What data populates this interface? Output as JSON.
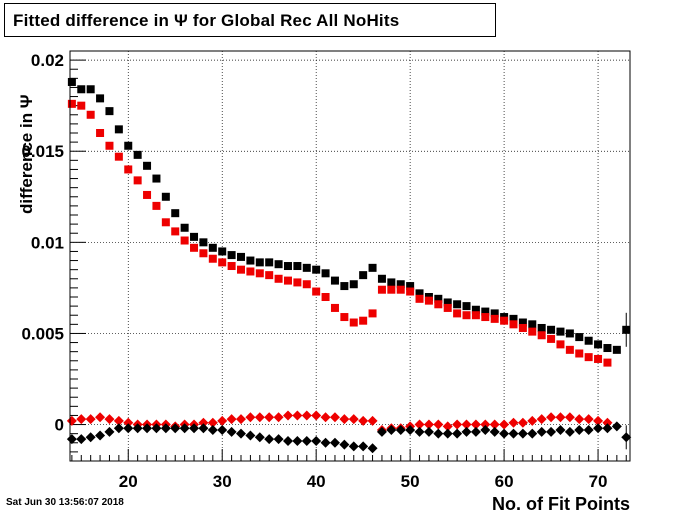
{
  "title": "Fitted difference in  Ψ  for Global Rec All NoHits",
  "timestamp": "Sat Jun 30 13:56:07 2018",
  "chart_data": {
    "type": "scatter",
    "title": "Fitted difference in  Ψ  for Global Rec All NoHits",
    "xlabel": "No. of Fit Points",
    "ylabel": "difference in Ψ",
    "xlim": [
      13.8,
      73.4
    ],
    "ylim": [
      -0.002,
      0.0205
    ],
    "grid": true,
    "x_ticks": [
      20,
      30,
      40,
      50,
      60,
      70
    ],
    "x_tick_labels": [
      "20",
      "30",
      "40",
      "50",
      "60",
      "70"
    ],
    "y_ticks": [
      0,
      0.005,
      0.01,
      0.015,
      0.02
    ],
    "y_tick_labels": [
      "0",
      "0.005",
      "0.01",
      "0.015",
      "0.02"
    ],
    "series": [
      {
        "marker": "square",
        "color": "#000000",
        "x": [
          14,
          15,
          16,
          17,
          18,
          19,
          20,
          21,
          22,
          23,
          24,
          25,
          26,
          27,
          28,
          29,
          30,
          31,
          32,
          33,
          34,
          35,
          36,
          37,
          38,
          39,
          40,
          41,
          42,
          43,
          44,
          45,
          46,
          47,
          48,
          49,
          50,
          51,
          52,
          53,
          54,
          55,
          56,
          57,
          58,
          59,
          60,
          61,
          62,
          63,
          64,
          65,
          66,
          67,
          68,
          69,
          70,
          71,
          72,
          73
        ],
        "y": [
          0.0188,
          0.0184,
          0.0184,
          0.0179,
          0.0172,
          0.0162,
          0.0153,
          0.0148,
          0.0142,
          0.0135,
          0.0125,
          0.0116,
          0.0108,
          0.0103,
          0.01,
          0.0097,
          0.0095,
          0.0093,
          0.0092,
          0.009,
          0.0089,
          0.0089,
          0.0088,
          0.0087,
          0.0087,
          0.0086,
          0.0085,
          0.0083,
          0.0079,
          0.0076,
          0.0077,
          0.0082,
          0.0086,
          0.008,
          0.0078,
          0.0077,
          0.0076,
          0.0072,
          0.007,
          0.0069,
          0.0067,
          0.0066,
          0.0065,
          0.0063,
          0.0062,
          0.0061,
          0.0059,
          0.0058,
          0.0056,
          0.0055,
          0.0053,
          0.0052,
          0.0051,
          0.005,
          0.0048,
          0.0046,
          0.0044,
          0.0042,
          0.0041,
          0.0052
        ]
      },
      {
        "marker": "square",
        "color": "#ee0000",
        "x": [
          14,
          15,
          16,
          17,
          18,
          19,
          20,
          21,
          22,
          23,
          24,
          25,
          26,
          27,
          28,
          29,
          30,
          31,
          32,
          33,
          34,
          35,
          36,
          37,
          38,
          39,
          40,
          41,
          42,
          43,
          44,
          45,
          46,
          47,
          48,
          49,
          50,
          51,
          52,
          53,
          54,
          55,
          56,
          57,
          58,
          59,
          60,
          61,
          62,
          63,
          64,
          65,
          66,
          67,
          68,
          69,
          70,
          71
        ],
        "y": [
          0.0176,
          0.0175,
          0.017,
          0.016,
          0.0153,
          0.0147,
          0.014,
          0.0134,
          0.0126,
          0.012,
          0.0111,
          0.0106,
          0.0101,
          0.0097,
          0.0094,
          0.0091,
          0.0089,
          0.0087,
          0.0085,
          0.0084,
          0.0083,
          0.0082,
          0.008,
          0.0079,
          0.0078,
          0.0077,
          0.0073,
          0.007,
          0.0064,
          0.0059,
          0.0056,
          0.0057,
          0.0061,
          0.0074,
          0.0074,
          0.0074,
          0.0073,
          0.0069,
          0.0068,
          0.0066,
          0.0064,
          0.0061,
          0.006,
          0.006,
          0.0059,
          0.0058,
          0.0057,
          0.0055,
          0.0053,
          0.0051,
          0.0049,
          0.0047,
          0.0044,
          0.0041,
          0.0039,
          0.0037,
          0.0036,
          0.0034
        ]
      },
      {
        "marker": "diamond",
        "color": "#ee0000",
        "x": [
          14,
          15,
          16,
          17,
          18,
          19,
          20,
          21,
          22,
          23,
          24,
          25,
          26,
          27,
          28,
          29,
          30,
          31,
          32,
          33,
          34,
          35,
          36,
          37,
          38,
          39,
          40,
          41,
          42,
          43,
          44,
          45,
          46,
          47,
          48,
          49,
          50,
          51,
          52,
          53,
          54,
          55,
          56,
          57,
          58,
          59,
          60,
          61,
          62,
          63,
          64,
          65,
          66,
          67,
          68,
          69,
          70,
          71
        ],
        "y": [
          0.0002,
          0.0003,
          0.0003,
          0.0004,
          0.0003,
          0.0002,
          0.0001,
          0.0,
          0.0,
          0.0,
          0.0,
          -0.0001,
          0.0,
          0.0,
          0.0001,
          0.0001,
          0.0002,
          0.0003,
          0.0003,
          0.0004,
          0.0004,
          0.0004,
          0.0004,
          0.0005,
          0.0005,
          0.0005,
          0.0005,
          0.0004,
          0.0004,
          0.0003,
          0.0003,
          0.0002,
          0.0002,
          -0.0003,
          -0.0002,
          -0.0002,
          -0.0001,
          0.0,
          0.0,
          0.0,
          -0.0001,
          0.0,
          0.0,
          0.0,
          0.0,
          0.0,
          0.0,
          0.0001,
          0.0001,
          0.0002,
          0.0003,
          0.0004,
          0.0004,
          0.0004,
          0.0003,
          0.0003,
          0.0002,
          0.0001
        ]
      },
      {
        "marker": "diamond",
        "color": "#000000",
        "x": [
          14,
          15,
          16,
          17,
          18,
          19,
          20,
          21,
          22,
          23,
          24,
          25,
          26,
          27,
          28,
          29,
          30,
          31,
          32,
          33,
          34,
          35,
          36,
          37,
          38,
          39,
          40,
          41,
          42,
          43,
          44,
          45,
          46,
          47,
          48,
          49,
          50,
          51,
          52,
          53,
          54,
          55,
          56,
          57,
          58,
          59,
          60,
          61,
          62,
          63,
          64,
          65,
          66,
          67,
          68,
          69,
          70,
          71,
          72,
          73
        ],
        "y": [
          -0.0008,
          -0.0008,
          -0.0007,
          -0.0006,
          -0.0004,
          -0.0002,
          -0.0002,
          -0.0002,
          -0.0002,
          -0.0002,
          -0.0002,
          -0.0002,
          -0.0002,
          -0.0002,
          -0.0002,
          -0.0003,
          -0.0003,
          -0.0004,
          -0.0005,
          -0.0006,
          -0.0007,
          -0.0008,
          -0.0008,
          -0.0009,
          -0.0009,
          -0.0009,
          -0.0009,
          -0.001,
          -0.001,
          -0.0011,
          -0.0012,
          -0.0012,
          -0.0013,
          -0.0004,
          -0.0003,
          -0.0003,
          -0.0003,
          -0.0004,
          -0.0004,
          -0.0005,
          -0.0005,
          -0.0005,
          -0.0004,
          -0.0004,
          -0.0003,
          -0.0004,
          -0.0005,
          -0.0005,
          -0.0005,
          -0.0005,
          -0.0004,
          -0.0004,
          -0.0003,
          -0.0004,
          -0.0003,
          -0.0003,
          -0.0002,
          -0.0002,
          -0.0001,
          -0.0007
        ]
      }
    ]
  }
}
